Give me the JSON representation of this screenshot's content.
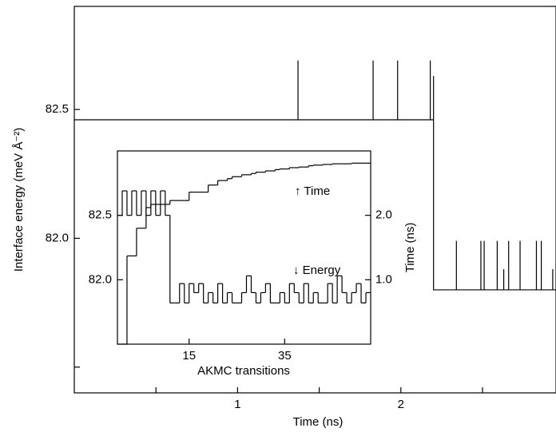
{
  "chart_data": [
    {
      "type": "line",
      "xlabel": "Time (ns)",
      "ylabel": "Interface energy (meV Å⁻²)",
      "x": [
        0,
        1.37,
        1.37,
        1.37,
        1.83,
        1.83,
        1.83,
        1.98,
        1.98,
        1.98,
        2.18,
        2.18,
        2.18,
        2.2,
        2.2,
        2.2,
        2.34,
        2.34,
        2.34,
        2.49,
        2.49,
        2.49,
        2.51,
        2.51,
        2.51,
        2.59,
        2.59,
        2.59,
        2.63,
        2.63,
        2.63,
        2.66,
        2.66,
        2.66,
        2.73,
        2.73,
        2.73,
        2.83,
        2.83,
        2.83,
        2.86,
        2.86,
        2.86,
        2.93,
        2.93,
        2.93,
        2.95
      ],
      "series": [
        {
          "color": "#000000",
          "values": [
            82.46,
            82.46,
            82.69,
            82.46,
            82.46,
            82.69,
            82.46,
            82.46,
            82.69,
            82.46,
            82.46,
            82.69,
            82.46,
            82.46,
            82.63,
            81.8,
            81.8,
            81.99,
            81.8,
            81.8,
            81.99,
            81.8,
            81.8,
            81.99,
            81.8,
            81.8,
            81.99,
            81.8,
            81.8,
            81.88,
            81.8,
            81.8,
            81.99,
            81.8,
            81.8,
            81.99,
            81.8,
            81.8,
            81.99,
            81.8,
            81.8,
            81.99,
            81.8,
            81.8,
            81.88,
            81.8,
            81.8
          ]
        }
      ],
      "xlim": [
        0,
        2.95
      ],
      "ylim": [
        81.4,
        82.9
      ],
      "xticks": [
        1,
        2
      ],
      "xminorticks": [
        0.5,
        1.5,
        2.5
      ],
      "yticks": [
        {
          "value": 82,
          "label": "82.0"
        },
        82.5
      ],
      "yminorticks": [
        81.5
      ]
    },
    {
      "type": "step",
      "xlabel": "AKMC transitions",
      "y2label": "Time (ns)",
      "annotations": [
        "↑ Time",
        "↓ Energy"
      ],
      "x": [
        0,
        1,
        2,
        3,
        4,
        5,
        6,
        7,
        8,
        9,
        10,
        11,
        12,
        13,
        14,
        15,
        16,
        17,
        18,
        19,
        20,
        21,
        22,
        23,
        24,
        25,
        26,
        27,
        28,
        29,
        30,
        31,
        32,
        33,
        34,
        35,
        36,
        37,
        38,
        39,
        40,
        41,
        42,
        43,
        44,
        45,
        46,
        47,
        48,
        49,
        50,
        51,
        52
      ],
      "series": [
        {
          "name": "Energy",
          "color": "#000000",
          "values": [
            82.5,
            82.69,
            82.5,
            82.69,
            82.5,
            82.69,
            82.5,
            82.69,
            82.5,
            82.69,
            82.5,
            81.82,
            81.82,
            81.97,
            81.82,
            81.97,
            81.9,
            81.97,
            81.82,
            81.9,
            81.82,
            81.97,
            81.82,
            81.9,
            81.82,
            81.82,
            81.9,
            82.03,
            81.9,
            81.82,
            81.9,
            81.97,
            81.82,
            81.82,
            81.9,
            81.82,
            81.97,
            81.9,
            81.82,
            81.97,
            81.82,
            81.9,
            81.82,
            81.82,
            81.97,
            81.82,
            82.03,
            81.9,
            81.82,
            81.9,
            81.97,
            81.82,
            81.9
          ]
        },
        {
          "name": "Time",
          "color": "#000000",
          "axis": "y2",
          "values": [
            0,
            0,
            1.37,
            1.37,
            1.8,
            1.8,
            2.12,
            2.17,
            2.17,
            2.17,
            2.17,
            2.23,
            2.23,
            2.23,
            2.23,
            2.36,
            2.36,
            2.36,
            2.36,
            2.47,
            2.47,
            2.54,
            2.54,
            2.57,
            2.6,
            2.6,
            2.63,
            2.63,
            2.65,
            2.67,
            2.67,
            2.69,
            2.69,
            2.71,
            2.72,
            2.72,
            2.74,
            2.74,
            2.75,
            2.75,
            2.77,
            2.78,
            2.78,
            2.79,
            2.79,
            2.8,
            2.8,
            2.8,
            2.8,
            2.81,
            2.81,
            2.81,
            2.81
          ]
        }
      ],
      "xlim": [
        0,
        53
      ],
      "ylim": [
        81.5,
        83.0
      ],
      "y2lim": [
        0,
        3.0
      ],
      "xticks": [
        15,
        35
      ],
      "yticks": [
        {
          "value": 82,
          "label": "82.0"
        },
        82.5
      ],
      "y2ticks": [
        {
          "value": 1,
          "label": "1.0"
        },
        {
          "value": 2,
          "label": "2.0"
        }
      ]
    }
  ]
}
